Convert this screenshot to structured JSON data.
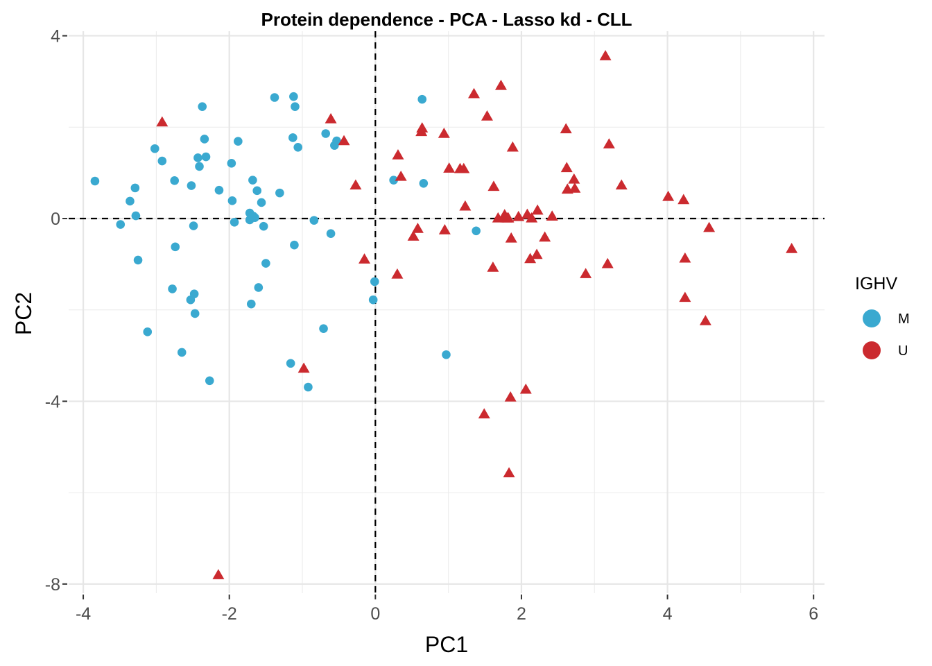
{
  "chart_data": {
    "type": "scatter",
    "title": "Protein dependence - PCA - Lasso kd - CLL",
    "xlabel": "PC1",
    "ylabel": "PC2",
    "xlim": [
      -4.2,
      6.15
    ],
    "ylim": [
      -8.2,
      4.1
    ],
    "x_ticks": [
      -4,
      -2,
      0,
      2,
      4,
      6
    ],
    "x_tick_labels": [
      "-4",
      "-2",
      "0",
      "2",
      "4",
      "6"
    ],
    "y_ticks": [
      4,
      0,
      -4,
      -8
    ],
    "y_tick_labels": [
      "4",
      "0",
      "-4",
      "-8"
    ],
    "grid": true,
    "reference_lines": {
      "x": 0,
      "y": 0,
      "style": "dashed"
    },
    "legend": {
      "title": "IGHV",
      "placement": "right"
    },
    "series": [
      {
        "name": "M",
        "color": "#3aa9d0",
        "marker": "circle",
        "points": [
          [
            -3.84,
            0.82
          ],
          [
            -3.49,
            -0.13
          ],
          [
            -3.36,
            0.38
          ],
          [
            -3.29,
            0.67
          ],
          [
            -3.28,
            0.06
          ],
          [
            -3.25,
            -0.91
          ],
          [
            -3.12,
            -2.48
          ],
          [
            -3.02,
            1.53
          ],
          [
            -2.92,
            1.26
          ],
          [
            -2.78,
            -1.54
          ],
          [
            -2.75,
            0.83
          ],
          [
            -2.74,
            -0.62
          ],
          [
            -2.65,
            -2.93
          ],
          [
            -2.53,
            -1.78
          ],
          [
            -2.52,
            0.72
          ],
          [
            -2.49,
            -0.16
          ],
          [
            -2.48,
            -1.65
          ],
          [
            -2.47,
            -2.08
          ],
          [
            -2.43,
            1.33
          ],
          [
            -2.41,
            1.14
          ],
          [
            -2.37,
            2.45
          ],
          [
            -2.34,
            1.74
          ],
          [
            -2.32,
            1.35
          ],
          [
            -2.27,
            -3.55
          ],
          [
            -2.14,
            0.62
          ],
          [
            -1.97,
            1.21
          ],
          [
            -1.96,
            0.39
          ],
          [
            -1.93,
            -0.08
          ],
          [
            -1.88,
            1.69
          ],
          [
            -1.72,
            0.12
          ],
          [
            -1.72,
            -0.03
          ],
          [
            -1.7,
            -1.87
          ],
          [
            -1.68,
            0.84
          ],
          [
            -1.67,
            0.05
          ],
          [
            -1.65,
            0.02
          ],
          [
            -1.62,
            0.61
          ],
          [
            -1.6,
            -1.51
          ],
          [
            -1.56,
            0.35
          ],
          [
            -1.53,
            -0.17
          ],
          [
            -1.5,
            -0.98
          ],
          [
            -1.38,
            2.65
          ],
          [
            -1.31,
            0.56
          ],
          [
            -1.16,
            -3.17
          ],
          [
            -1.13,
            1.77
          ],
          [
            -1.12,
            2.67
          ],
          [
            -1.11,
            -0.58
          ],
          [
            -1.1,
            2.45
          ],
          [
            -1.06,
            1.56
          ],
          [
            -0.92,
            -3.69
          ],
          [
            -0.84,
            -0.04
          ],
          [
            -0.71,
            -2.41
          ],
          [
            -0.68,
            1.86
          ],
          [
            -0.61,
            -0.33
          ],
          [
            -0.56,
            1.6
          ],
          [
            -0.53,
            1.7
          ],
          [
            -0.03,
            -1.78
          ],
          [
            -0.01,
            -1.38
          ],
          [
            0.25,
            0.84
          ],
          [
            0.64,
            2.61
          ],
          [
            0.66,
            0.77
          ],
          [
            0.97,
            -2.98
          ],
          [
            1.38,
            -0.27
          ]
        ]
      },
      {
        "name": "U",
        "color": "#cb2a2f",
        "marker": "triangle",
        "points": [
          [
            -2.92,
            2.1
          ],
          [
            -2.15,
            -7.81
          ],
          [
            -0.98,
            -3.29
          ],
          [
            -0.61,
            2.17
          ],
          [
            -0.43,
            1.69
          ],
          [
            -0.27,
            0.72
          ],
          [
            -0.15,
            -0.9
          ],
          [
            0.3,
            -1.23
          ],
          [
            0.31,
            1.38
          ],
          [
            0.35,
            0.91
          ],
          [
            0.52,
            -0.4
          ],
          [
            0.58,
            -0.23
          ],
          [
            0.63,
            1.89
          ],
          [
            0.64,
            1.97
          ],
          [
            0.94,
            1.85
          ],
          [
            0.95,
            -0.26
          ],
          [
            1.01,
            1.09
          ],
          [
            1.16,
            1.08
          ],
          [
            1.21,
            1.08
          ],
          [
            1.23,
            0.26
          ],
          [
            1.35,
            2.72
          ],
          [
            1.49,
            -4.29
          ],
          [
            1.53,
            2.23
          ],
          [
            1.61,
            -1.08
          ],
          [
            1.62,
            0.69
          ],
          [
            1.68,
            0.0
          ],
          [
            1.72,
            2.9
          ],
          [
            1.77,
            0.02
          ],
          [
            1.77,
            0.07
          ],
          [
            1.79,
            0.0
          ],
          [
            1.81,
            0.0
          ],
          [
            1.82,
            0.0
          ],
          [
            1.83,
            -5.58
          ],
          [
            1.85,
            -3.92
          ],
          [
            1.86,
            -0.44
          ],
          [
            1.88,
            1.55
          ],
          [
            1.96,
            0.03
          ],
          [
            2.06,
            -3.75
          ],
          [
            2.08,
            0.08
          ],
          [
            2.12,
            -0.89
          ],
          [
            2.14,
            0.0
          ],
          [
            2.21,
            -0.8
          ],
          [
            2.22,
            0.17
          ],
          [
            2.32,
            -0.42
          ],
          [
            2.42,
            0.04
          ],
          [
            2.61,
            1.95
          ],
          [
            2.62,
            1.1
          ],
          [
            2.63,
            0.63
          ],
          [
            2.72,
            0.85
          ],
          [
            2.73,
            0.65
          ],
          [
            2.88,
            -1.22
          ],
          [
            3.15,
            3.55
          ],
          [
            3.18,
            -1.0
          ],
          [
            3.2,
            1.62
          ],
          [
            3.37,
            0.72
          ],
          [
            4.01,
            0.47
          ],
          [
            4.22,
            0.4
          ],
          [
            4.24,
            -0.88
          ],
          [
            4.24,
            -1.74
          ],
          [
            4.52,
            -2.25
          ],
          [
            4.57,
            -0.21
          ],
          [
            5.7,
            -0.67
          ]
        ]
      }
    ]
  }
}
